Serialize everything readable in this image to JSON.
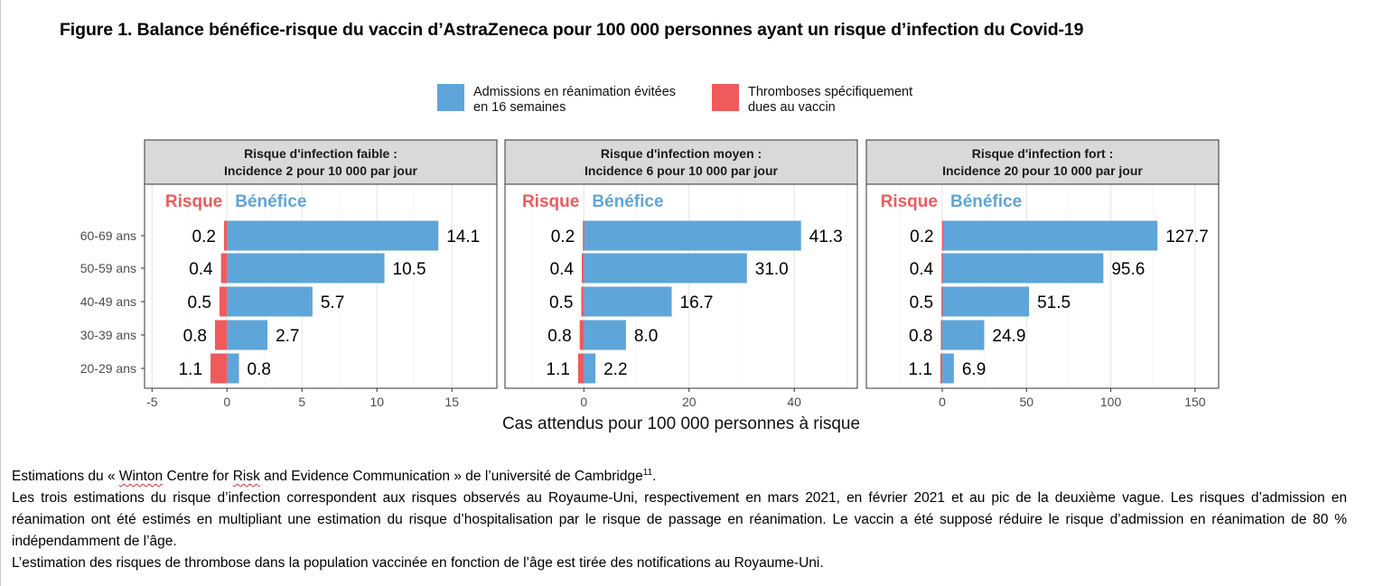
{
  "figure": {
    "title": "Figure 1. Balance bénéfice-risque du vaccin d’AstraZeneca pour 100 000 personnes ayant un risque d’infection du Covid-19"
  },
  "chart_data": {
    "type": "bar",
    "orientation": "horizontal",
    "stacking": "diverging",
    "categories": [
      "60-69 ans",
      "50-59 ans",
      "40-49 ans",
      "30-39 ans",
      "20-29 ans"
    ],
    "xlabel": "Cas attendus pour 100 000 personnes à risque",
    "legend": {
      "position": "top",
      "items": [
        {
          "key": "benefit",
          "label_line1": "Admissions en réanimation évitées",
          "label_line2": "en 16 semaines",
          "color": "#5EA5DA"
        },
        {
          "key": "risk",
          "label_line1": "Thromboses spécifiquement",
          "label_line2": "dues au vaccin",
          "color": "#F05A5B"
        }
      ]
    },
    "side_labels": {
      "risk": "Risque",
      "benefit": "Bénéfice",
      "risk_color": "#F05A5B",
      "benefit_color": "#5EA5DA"
    },
    "colors": {
      "benefit": "#5EA5DA",
      "risk": "#F05A5B",
      "strip": "#D9D9D9"
    },
    "panels": [
      {
        "strip_line1": "Risque d'infection faible :",
        "strip_line2": "Incidence 2 pour 10 000 par jour",
        "xlim": [
          -5.5,
          18.0
        ],
        "xticks": [
          -5,
          0,
          5,
          10,
          15
        ],
        "xtick_labels": [
          "-5",
          "0",
          "5",
          "10",
          "15"
        ],
        "risk": [
          0.2,
          0.4,
          0.5,
          0.8,
          1.1
        ],
        "benefit": [
          14.1,
          10.5,
          5.7,
          2.7,
          0.8
        ],
        "risk_labels": [
          "0.2",
          "0.4",
          "0.5",
          "0.8",
          "1.1"
        ],
        "benefit_labels": [
          "14.1",
          "10.5",
          "5.7",
          "2.7",
          "0.8"
        ]
      },
      {
        "strip_line1": "Risque d'infection moyen :",
        "strip_line2": "Incidence 6 pour 10 000 par jour",
        "xlim": [
          -15.0,
          52.0
        ],
        "xticks": [
          0,
          20,
          40
        ],
        "xtick_labels": [
          "0",
          "20",
          "40"
        ],
        "risk": [
          0.2,
          0.4,
          0.5,
          0.8,
          1.1
        ],
        "benefit": [
          41.3,
          31.0,
          16.7,
          8.0,
          2.2
        ],
        "risk_labels": [
          "0.2",
          "0.4",
          "0.5",
          "0.8",
          "1.1"
        ],
        "benefit_labels": [
          "41.3",
          "31.0",
          "16.7",
          "8.0",
          "2.2"
        ]
      },
      {
        "strip_line1": "Risque d'infection fort :",
        "strip_line2": "Incidence 20 pour 10 000 par jour",
        "xlim": [
          -45.0,
          164.0
        ],
        "xticks": [
          0,
          50,
          100,
          150
        ],
        "xtick_labels": [
          "0",
          "50",
          "100",
          "150"
        ],
        "risk": [
          0.2,
          0.4,
          0.5,
          0.8,
          1.1
        ],
        "benefit": [
          127.7,
          95.6,
          51.5,
          24.9,
          6.9
        ],
        "risk_labels": [
          "0.2",
          "0.4",
          "0.5",
          "0.8",
          "1.1"
        ],
        "benefit_labels": [
          "127.7",
          "95.6",
          "51.5",
          "24.9",
          "6.9"
        ]
      }
    ]
  },
  "caption": {
    "line1_pre": "Estimations du « ",
    "line1_word1": "Winton",
    "line1_mid1": " Centre for ",
    "line1_word2": "Risk",
    "line1_mid2": " and Evidence Communication » de l’université de Cambridge",
    "line1_sup": "11",
    "line1_post": ".",
    "para2": "Les trois estimations du risque d’infection correspondent aux risques observés au Royaume-Uni, respectivement en mars 2021, en février 2021 et au pic de la deuxième vague. Les risques d’admission en réanimation ont été estimés en multipliant une estimation du risque d’hospitalisation par le risque de passage en réanimation. Le vaccin a été supposé réduire le risque d’admission en réanimation de 80 % indépendamment de l’âge.",
    "para3": "L’estimation des risques de thrombose dans la population vaccinée en fonction de l’âge est tirée des notifications au Royaume-Uni."
  }
}
